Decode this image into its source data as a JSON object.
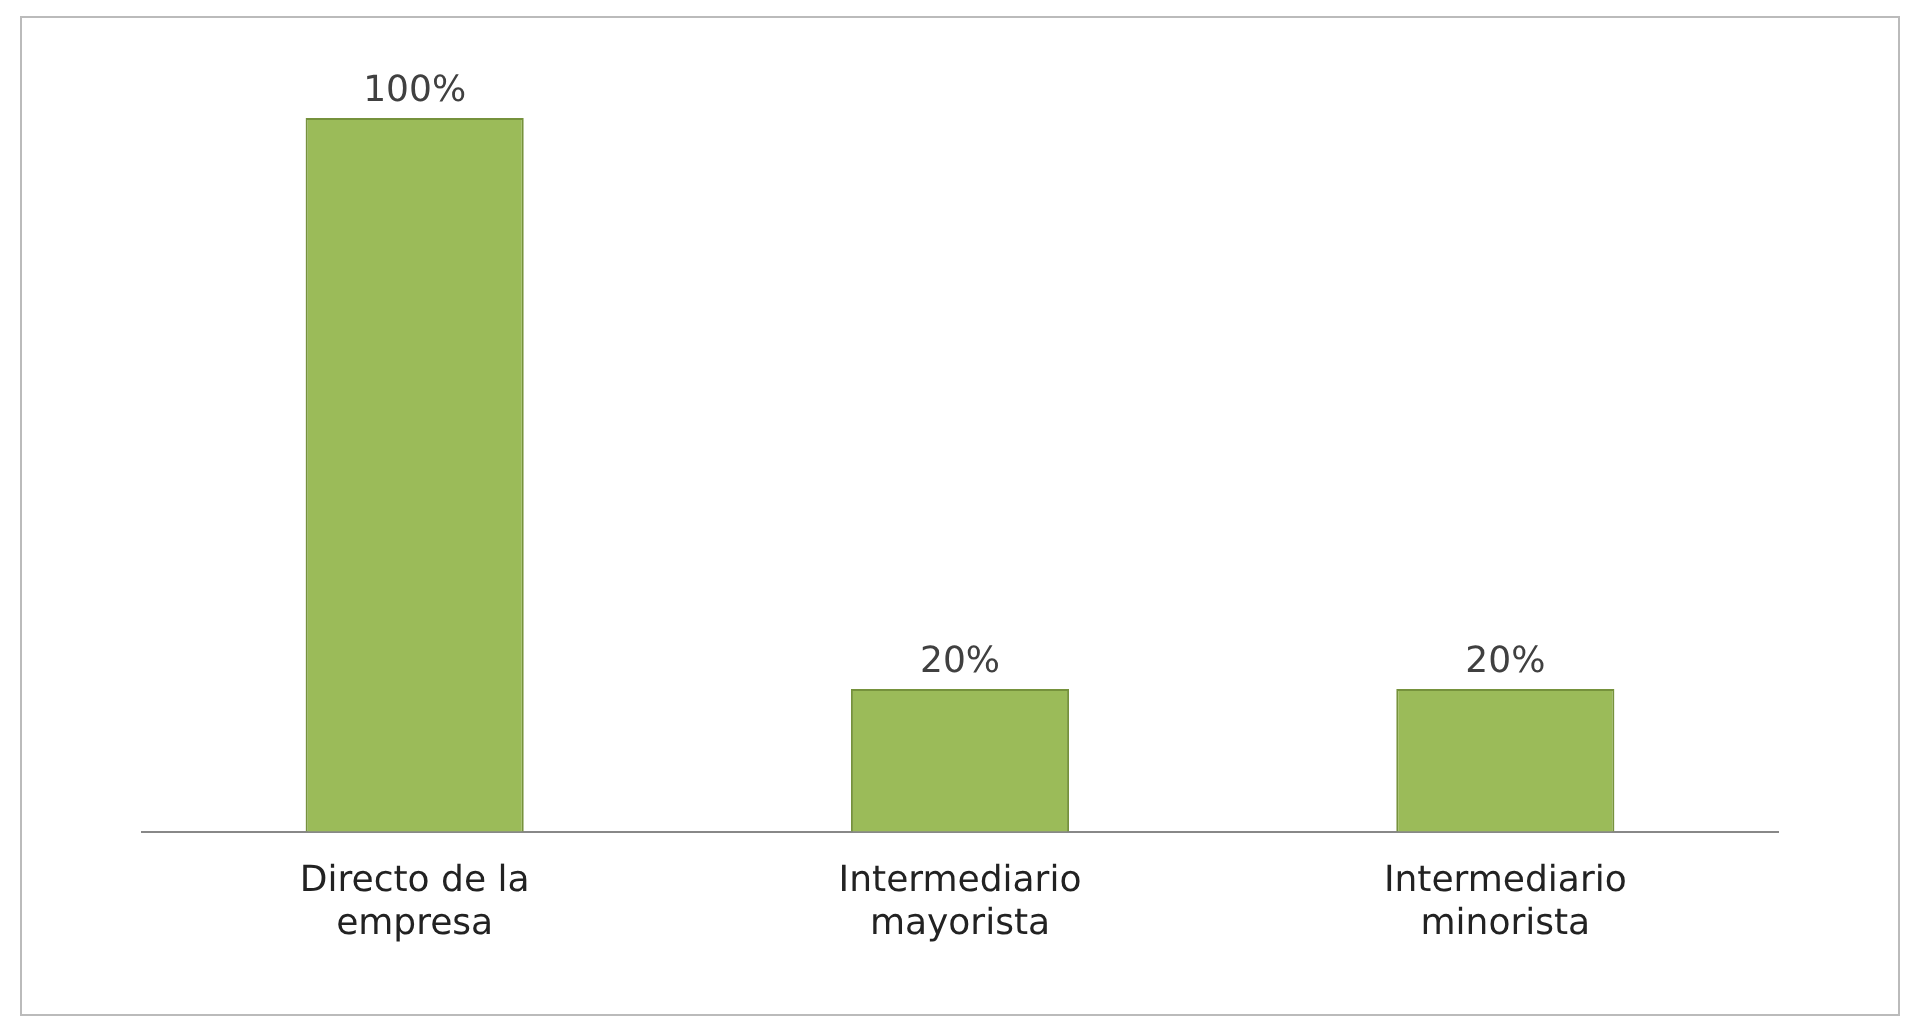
{
  "chart_data": {
    "type": "bar",
    "categories": [
      "Directo de la empresa",
      "Intermediario mayorista",
      "Intermediario minorista"
    ],
    "values": [
      100,
      20,
      20
    ],
    "value_labels": [
      "100%",
      "20%",
      "20%"
    ],
    "color": "#9bbb59",
    "ylim": [
      0,
      100
    ],
    "tick_labels": "x",
    "grid": false,
    "legend": false
  }
}
